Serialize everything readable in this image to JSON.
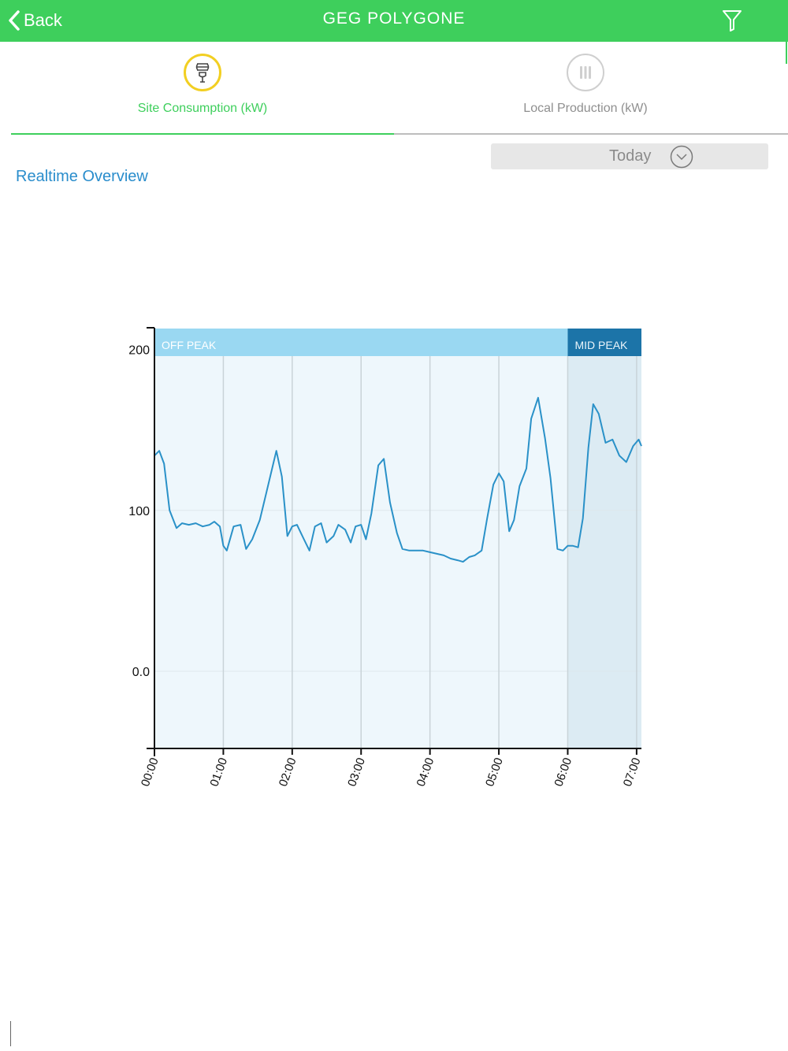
{
  "header": {
    "back_label": "Back",
    "title": "GEG POLYGONE",
    "back_icon": "chevron-left-icon",
    "filter_icon": "filter-icon"
  },
  "tabs": [
    {
      "label": "Site Consumption (kW)",
      "icon": "lightbulb-icon",
      "active": true
    },
    {
      "label": "Local Production (kW)",
      "icon": "production-icon",
      "active": false
    }
  ],
  "period": {
    "selected": "Today",
    "icon": "chevron-down-icon"
  },
  "section_title": "Realtime Overview",
  "colors": {
    "brand_green": "#3ecf5c",
    "off_peak": "#9ad8f2",
    "mid_peak": "#1c74a8",
    "line": "#2a91c8",
    "link": "#2a8dcc"
  },
  "chart_data": {
    "type": "line",
    "xlabel": "",
    "ylabel": "",
    "x_ticks": [
      "00:00",
      "01:00",
      "02:00",
      "03:00",
      "04:00",
      "05:00",
      "06:00",
      "07:00"
    ],
    "y_ticks": [
      {
        "value": 0,
        "label": "0.0"
      },
      {
        "value": 100,
        "label": "100"
      },
      {
        "value": 200,
        "label": "200"
      }
    ],
    "ylim": [
      -48,
      213
    ],
    "xlim_hours": [
      0,
      7.07
    ],
    "grid": true,
    "bands": [
      {
        "label": "OFF PEAK",
        "start_hours": 0,
        "end_hours": 6
      },
      {
        "label": "MID PEAK",
        "start_hours": 6,
        "end_hours": 7.07
      }
    ],
    "series": [
      {
        "x_hours": [
          0,
          0.07,
          0.14,
          0.22,
          0.32,
          0.4,
          0.5,
          0.6,
          0.7,
          0.8,
          0.87,
          0.95,
          1.0,
          1.05,
          1.15,
          1.25,
          1.33,
          1.42,
          1.53,
          1.63,
          1.72,
          1.77,
          1.85,
          1.93,
          2.0,
          2.07,
          2.17,
          2.25,
          2.33,
          2.42,
          2.5,
          2.6,
          2.67,
          2.77,
          2.85,
          2.92,
          3.0,
          3.07,
          3.15,
          3.25,
          3.33,
          3.42,
          3.52,
          3.6,
          3.7,
          3.8,
          3.9,
          4.0,
          4.1,
          4.2,
          4.3,
          4.4,
          4.48,
          4.57,
          4.65,
          4.75,
          4.83,
          4.92,
          5.0,
          5.07,
          5.15,
          5.22,
          5.3,
          5.4,
          5.47,
          5.57,
          5.67,
          5.75,
          5.85,
          5.93,
          6.0,
          6.07,
          6.15,
          6.22,
          6.3,
          6.37,
          6.45,
          6.55,
          6.65,
          6.75,
          6.85,
          6.95,
          7.03,
          7.07
        ],
        "values": [
          134,
          137,
          129,
          100,
          89,
          92,
          91,
          92,
          90,
          91,
          93,
          90,
          78,
          75,
          90,
          91,
          76,
          82,
          94,
          112,
          128,
          137,
          121,
          84,
          90,
          91,
          82,
          75,
          90,
          92,
          80,
          84,
          91,
          88,
          80,
          90,
          91,
          82,
          98,
          128,
          132,
          105,
          86,
          76,
          75,
          75,
          75,
          74,
          73,
          72,
          70,
          69,
          68,
          71,
          72,
          75,
          95,
          116,
          123,
          118,
          87,
          94,
          115,
          126,
          157,
          170,
          145,
          120,
          76,
          75,
          78,
          78,
          77,
          95,
          139,
          166,
          160,
          142,
          144,
          134,
          130,
          140,
          144,
          140
        ]
      }
    ]
  }
}
